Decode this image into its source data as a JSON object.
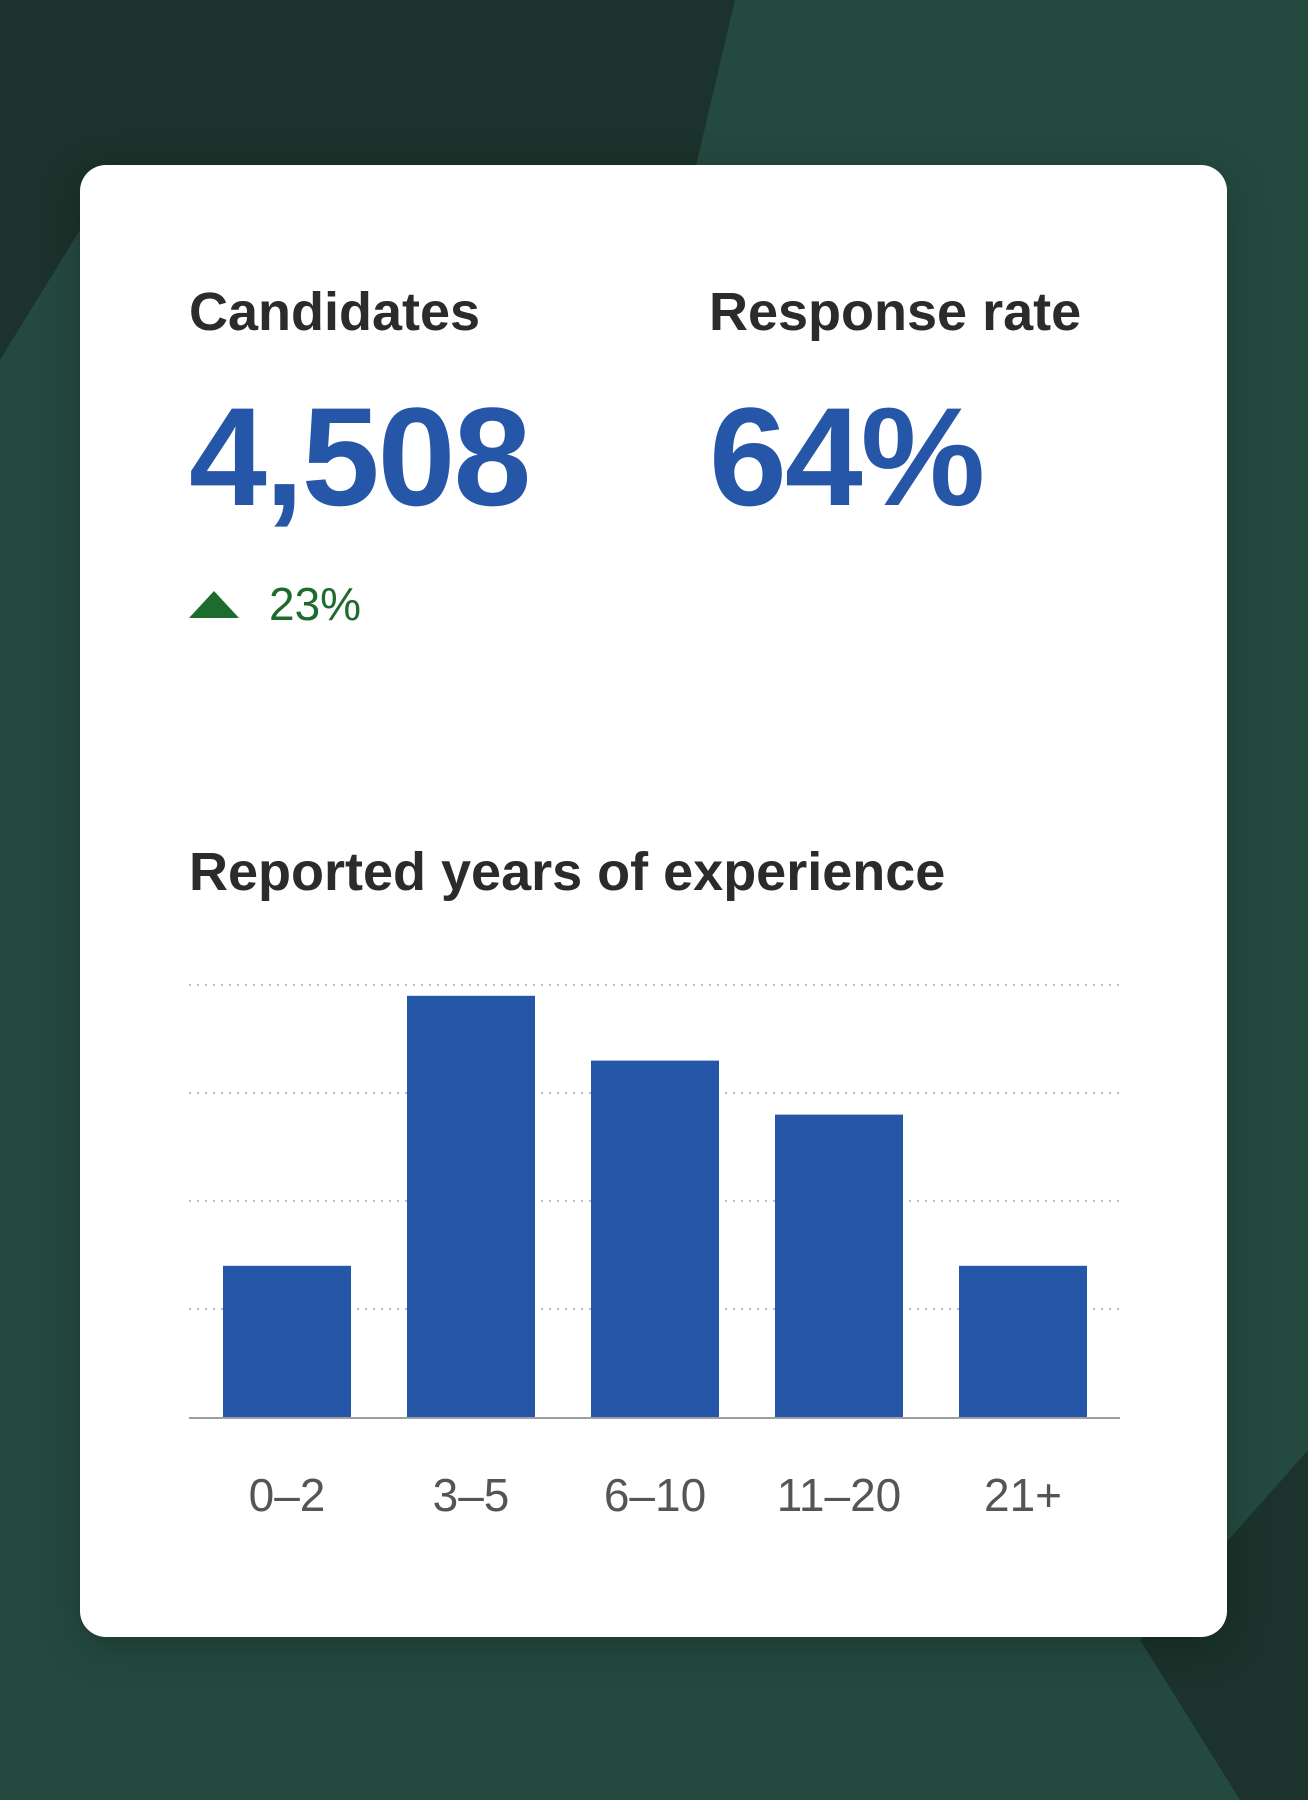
{
  "colors": {
    "background": "#244a40",
    "background_dark": "#1b332c",
    "card": "#ffffff",
    "accent": "#2656a8",
    "positive": "#1e6b2e",
    "text": "#2b2b2b",
    "muted": "#555555"
  },
  "stats": {
    "candidates": {
      "label": "Candidates",
      "value": "4,508",
      "delta": "23%",
      "delta_icon": "triangle-up-icon"
    },
    "response_rate": {
      "label": "Response rate",
      "value": "64%"
    }
  },
  "chart_data": {
    "type": "bar",
    "title": "Reported years of experience",
    "categories": [
      "0–2",
      "3–5",
      "6–10",
      "11–20",
      "21+"
    ],
    "values": [
      14,
      39,
      33,
      28,
      14
    ],
    "ylim": [
      0,
      40
    ],
    "gridlines": [
      10,
      20,
      30,
      40
    ],
    "grid": true,
    "xlabel": "",
    "ylabel": ""
  }
}
